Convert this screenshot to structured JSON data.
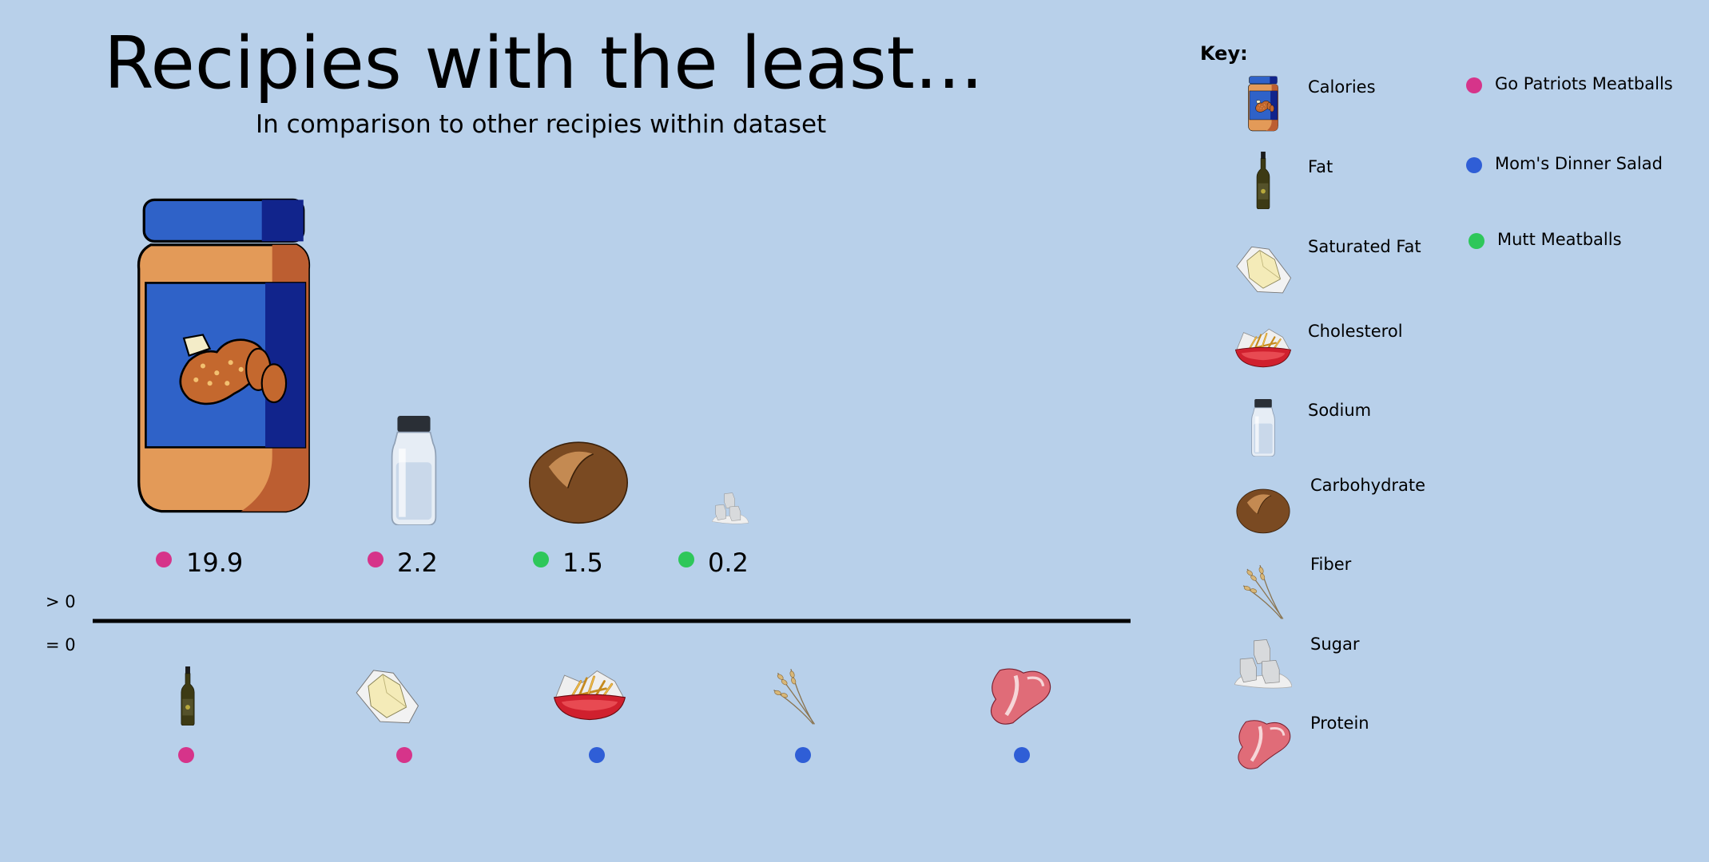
{
  "title": "Recipies with the least...",
  "subtitle": "In comparison to other recipies within dataset",
  "colors": {
    "background": "#b8d0ea",
    "go_patriots_meatballs": "#d6348a",
    "moms_dinner_salad": "#2f5ed6",
    "mutt_meatballs": "#2ec75a"
  },
  "chart_data": {
    "type": "bar",
    "row_labels": [
      "> 0",
      "= 0"
    ],
    "above_zero": [
      {
        "nutrient": "Calories",
        "icon": "peanut-butter-jar-icon",
        "recipe": "Go Patriots Meatballs",
        "value": 19.9,
        "label": "19.9"
      },
      {
        "nutrient": "Sodium",
        "icon": "salt-shaker-icon",
        "recipe": "Go Patriots Meatballs",
        "value": 2.2,
        "label": "2.2"
      },
      {
        "nutrient": "Carbohydrate",
        "icon": "bread-roll-icon",
        "recipe": "Mutt Meatballs",
        "value": 1.5,
        "label": "1.5"
      },
      {
        "nutrient": "Sugar",
        "icon": "sugar-cube-icon",
        "recipe": "Mutt Meatballs",
        "value": 0.2,
        "label": "0.2"
      }
    ],
    "zero": [
      {
        "nutrient": "Fat",
        "icon": "oil-bottle-icon",
        "recipe": "Go Patriots Meatballs",
        "value": 0
      },
      {
        "nutrient": "Saturated Fat",
        "icon": "butter-icon",
        "recipe": "Go Patriots Meatballs",
        "value": 0
      },
      {
        "nutrient": "Cholesterol",
        "icon": "fries-bowl-icon",
        "recipe": "Mom's Dinner Salad",
        "value": 0
      },
      {
        "nutrient": "Fiber",
        "icon": "wheat-icon",
        "recipe": "Mom's Dinner Salad",
        "value": 0
      },
      {
        "nutrient": "Protein",
        "icon": "steak-icon",
        "recipe": "Mom's Dinner Salad",
        "value": 0
      }
    ]
  },
  "key": {
    "title": "Key:",
    "nutrients": [
      {
        "label": "Calories",
        "icon": "peanut-butter-jar-icon"
      },
      {
        "label": "Fat",
        "icon": "oil-bottle-icon"
      },
      {
        "label": "Saturated Fat",
        "icon": "butter-icon"
      },
      {
        "label": "Cholesterol",
        "icon": "fries-bowl-icon"
      },
      {
        "label": "Sodium",
        "icon": "salt-shaker-icon"
      },
      {
        "label": "Carbohydrate",
        "icon": "bread-roll-icon"
      },
      {
        "label": "Fiber",
        "icon": "wheat-icon"
      },
      {
        "label": "Sugar",
        "icon": "sugar-cube-icon"
      },
      {
        "label": "Protein",
        "icon": "steak-icon"
      }
    ],
    "recipes": [
      {
        "label": "Go Patriots Meatballs",
        "color": "#d6348a"
      },
      {
        "label": "Mom's Dinner Salad",
        "color": "#2f5ed6"
      },
      {
        "label": "Mutt Meatballs",
        "color": "#2ec75a"
      }
    ]
  }
}
